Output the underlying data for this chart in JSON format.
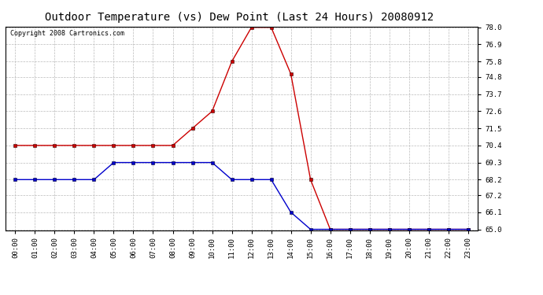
{
  "title": "Outdoor Temperature (vs) Dew Point (Last 24 Hours) 20080912",
  "copyright_text": "Copyright 2008 Cartronics.com",
  "x_labels": [
    "00:00",
    "01:00",
    "02:00",
    "03:00",
    "04:00",
    "05:00",
    "06:00",
    "07:00",
    "08:00",
    "09:00",
    "10:00",
    "11:00",
    "12:00",
    "13:00",
    "14:00",
    "15:00",
    "16:00",
    "17:00",
    "18:00",
    "19:00",
    "20:00",
    "21:00",
    "22:00",
    "23:00"
  ],
  "temp_values": [
    70.4,
    70.4,
    70.4,
    70.4,
    70.4,
    70.4,
    70.4,
    70.4,
    70.4,
    71.5,
    72.6,
    75.8,
    78.0,
    78.0,
    75.0,
    68.2,
    65.0,
    65.0,
    65.0,
    65.0,
    65.0,
    65.0,
    65.0,
    65.0
  ],
  "dew_values": [
    68.2,
    68.2,
    68.2,
    68.2,
    68.2,
    69.3,
    69.3,
    69.3,
    69.3,
    69.3,
    69.3,
    68.2,
    68.2,
    68.2,
    66.1,
    65.0,
    65.0,
    65.0,
    65.0,
    65.0,
    65.0,
    65.0,
    65.0,
    65.0
  ],
  "temp_color": "#cc0000",
  "dew_color": "#0000cc",
  "ylim_min": 64.95,
  "ylim_max": 78.05,
  "yticks": [
    65.0,
    66.1,
    67.2,
    68.2,
    69.3,
    70.4,
    71.5,
    72.6,
    73.7,
    74.8,
    75.8,
    76.9,
    78.0
  ],
  "background_color": "#ffffff",
  "plot_bg_color": "#ffffff",
  "grid_color": "#bbbbbb",
  "title_fontsize": 10,
  "copyright_fontsize": 6,
  "tick_fontsize": 6.5,
  "marker": "s",
  "marker_size": 2.5,
  "line_width": 1.0
}
